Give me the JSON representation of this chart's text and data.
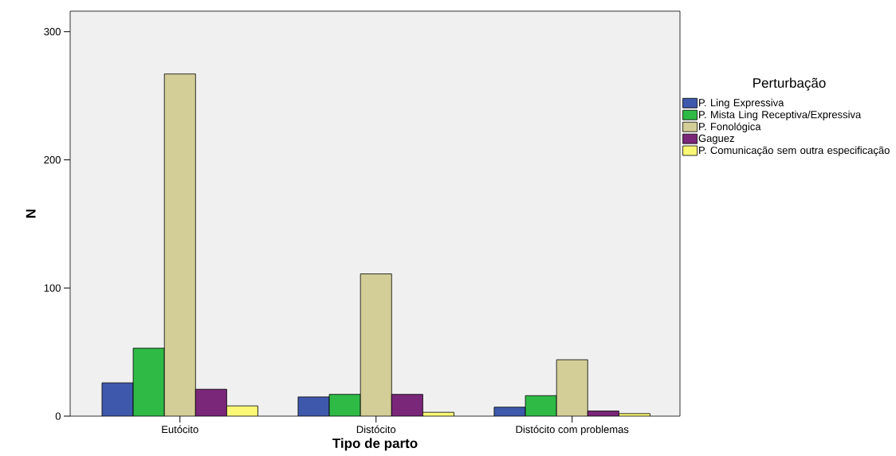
{
  "chart_data": {
    "type": "bar",
    "xlabel": "Tipo de parto",
    "ylabel": "N",
    "legend_title": "Perturbação",
    "legend": "right",
    "categories": [
      "Eutócito",
      "Distócito",
      "Distócito com problemas"
    ],
    "series": [
      {
        "name": "P. Ling Expressiva",
        "color": "#3e58ac",
        "values": [
          26,
          15,
          7
        ]
      },
      {
        "name": "P. Mista Ling Receptiva/Expressiva",
        "color": "#2fba46",
        "values": [
          53,
          17,
          16
        ]
      },
      {
        "name": "P. Fonológica",
        "color": "#d3ce97",
        "values": [
          267,
          111,
          44
        ]
      },
      {
        "name": "Gaguez",
        "color": "#7a2779",
        "values": [
          21,
          17,
          4
        ]
      },
      {
        "name": "P. Comunicação sem outra especificação",
        "color": "#fbf876",
        "values": [
          8,
          3,
          2
        ]
      }
    ],
    "ylim": [
      0,
      316
    ],
    "yticks": [
      0,
      100,
      200,
      300
    ]
  }
}
